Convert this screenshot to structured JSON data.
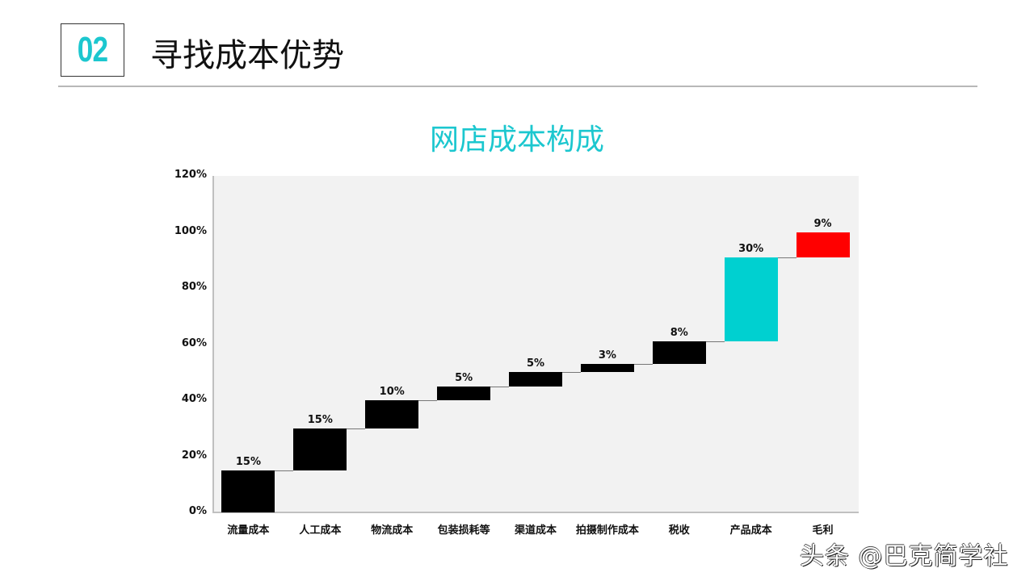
{
  "header": {
    "section_number": "02",
    "title": "寻找成本优势"
  },
  "chart_title": "网店成本构成",
  "y_ticks": [
    "120%",
    "100%",
    "80%",
    "60%",
    "40%",
    "20%",
    "0%"
  ],
  "colors": {
    "accent": "#1cc7cf",
    "cost_bar": "#000000",
    "product_cost_bar": "#00d0d0",
    "profit_bar": "#ff0000",
    "plot_background": "#f2f2f2"
  },
  "bars": [
    {
      "category": "流量成本",
      "label": "15%",
      "start": 0,
      "end": 15,
      "color": "#000000"
    },
    {
      "category": "人工成本",
      "label": "15%",
      "start": 15,
      "end": 30,
      "color": "#000000"
    },
    {
      "category": "物流成本",
      "label": "10%",
      "start": 30,
      "end": 40,
      "color": "#000000"
    },
    {
      "category": "包装损耗等",
      "label": "5%",
      "start": 40,
      "end": 45,
      "color": "#000000"
    },
    {
      "category": "渠道成本",
      "label": "5%",
      "start": 45,
      "end": 50,
      "color": "#000000"
    },
    {
      "category": "拍摄制作成本",
      "label": "3%",
      "start": 50,
      "end": 53,
      "color": "#000000"
    },
    {
      "category": "税收",
      "label": "8%",
      "start": 53,
      "end": 61,
      "color": "#000000"
    },
    {
      "category": "产品成本",
      "label": "30%",
      "start": 61,
      "end": 91,
      "color": "#00d0d0"
    },
    {
      "category": "毛利",
      "label": "9%",
      "start": 91,
      "end": 100,
      "color": "#ff0000"
    }
  ],
  "watermark": "头条 @巴克简学社",
  "chart_data": {
    "type": "bar",
    "subtype": "waterfall",
    "title": "网店成本构成",
    "categories": [
      "流量成本",
      "人工成本",
      "物流成本",
      "包装损耗等",
      "渠道成本",
      "拍摄制作成本",
      "税收",
      "产品成本",
      "毛利"
    ],
    "values": [
      15,
      15,
      10,
      5,
      5,
      3,
      8,
      30,
      9
    ],
    "cumulative_start": [
      0,
      15,
      30,
      40,
      45,
      50,
      53,
      61,
      91
    ],
    "cumulative_end": [
      15,
      30,
      40,
      45,
      50,
      53,
      61,
      91,
      100
    ],
    "data_labels": [
      "15%",
      "15%",
      "10%",
      "5%",
      "5%",
      "3%",
      "8%",
      "30%",
      "9%"
    ],
    "xlabel": "",
    "ylabel": "",
    "ylim": [
      0,
      120
    ],
    "y_tick_labels": [
      "0%",
      "20%",
      "40%",
      "60%",
      "80%",
      "100%",
      "120%"
    ],
    "grid": false,
    "legend": null
  }
}
